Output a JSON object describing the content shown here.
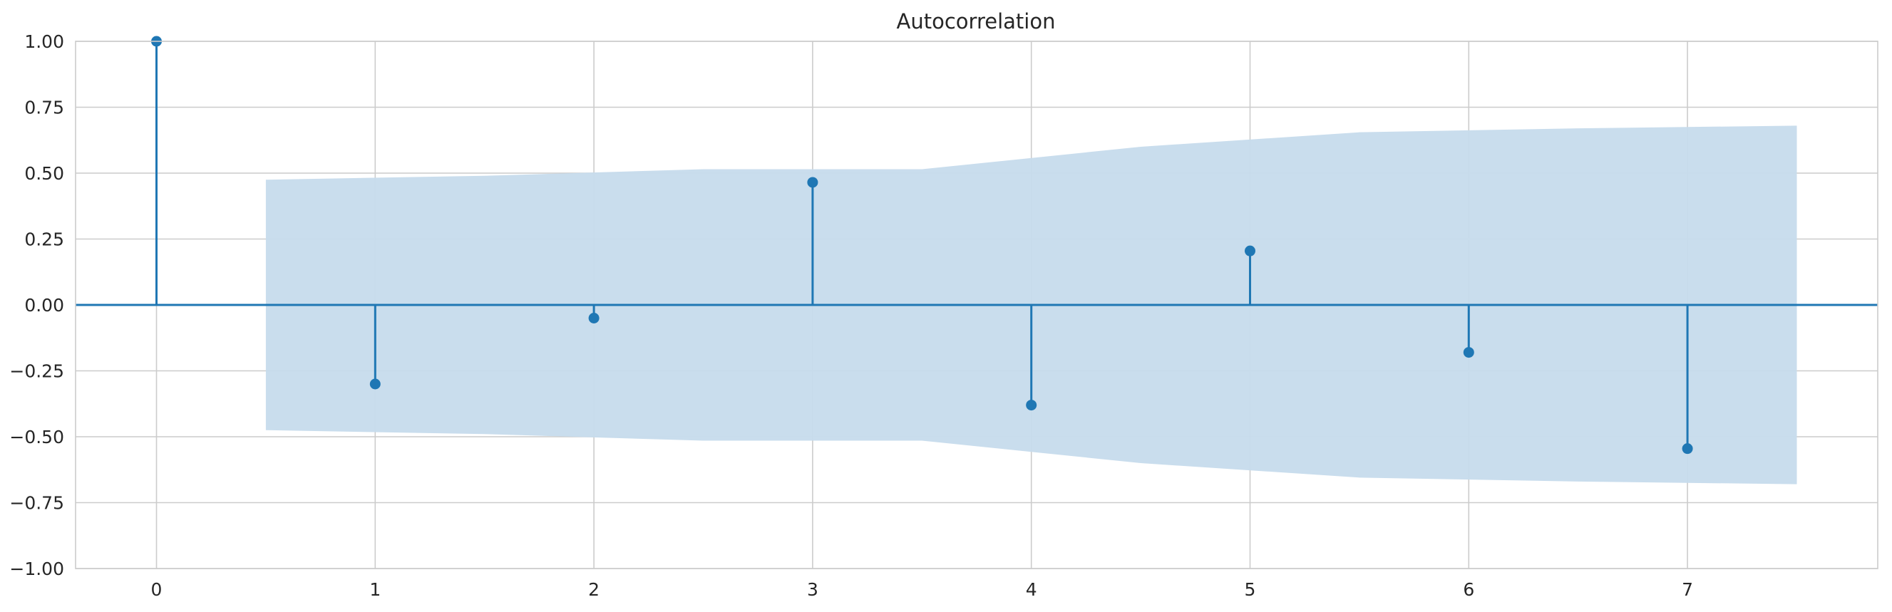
{
  "chart_data": {
    "type": "stem",
    "title": "Autocorrelation",
    "xlabel": "",
    "ylabel": "",
    "xlim": [
      -0.37,
      7.87
    ],
    "ylim": [
      -1.0,
      1.0
    ],
    "x_ticks": [
      0,
      1,
      2,
      3,
      4,
      5,
      6,
      7
    ],
    "x_tick_labels": [
      "0",
      "1",
      "2",
      "3",
      "4",
      "5",
      "6",
      "7"
    ],
    "y_ticks": [
      1.0,
      0.75,
      0.5,
      0.25,
      0.0,
      -0.25,
      -0.5,
      -0.75,
      -1.0
    ],
    "y_tick_labels": [
      "1.00",
      "0.75",
      "0.50",
      "0.25",
      "0.00",
      "−0.25",
      "−0.50",
      "−0.75",
      "−1.00"
    ],
    "grid": true,
    "series": [
      {
        "lags": [
          0,
          1,
          2,
          3,
          4,
          5,
          6,
          7
        ],
        "values": [
          1.0,
          -0.3,
          -0.05,
          0.465,
          -0.38,
          0.205,
          -0.18,
          -0.545
        ]
      }
    ],
    "confidence_band": {
      "x": [
        0.5,
        1.5,
        2.5,
        3.5,
        4.5,
        5.5,
        6.5,
        7.5
      ],
      "upper": [
        0.475,
        0.49,
        0.515,
        0.515,
        0.6,
        0.655,
        0.67,
        0.68
      ],
      "lower": [
        -0.475,
        -0.49,
        -0.515,
        -0.515,
        -0.6,
        -0.655,
        -0.67,
        -0.68
      ]
    },
    "colors": {
      "series": "#1f77b4",
      "band": "#c6dbec",
      "grid": "#cccccc",
      "zero_line": "#1f77b4",
      "background": "#ffffff"
    }
  }
}
